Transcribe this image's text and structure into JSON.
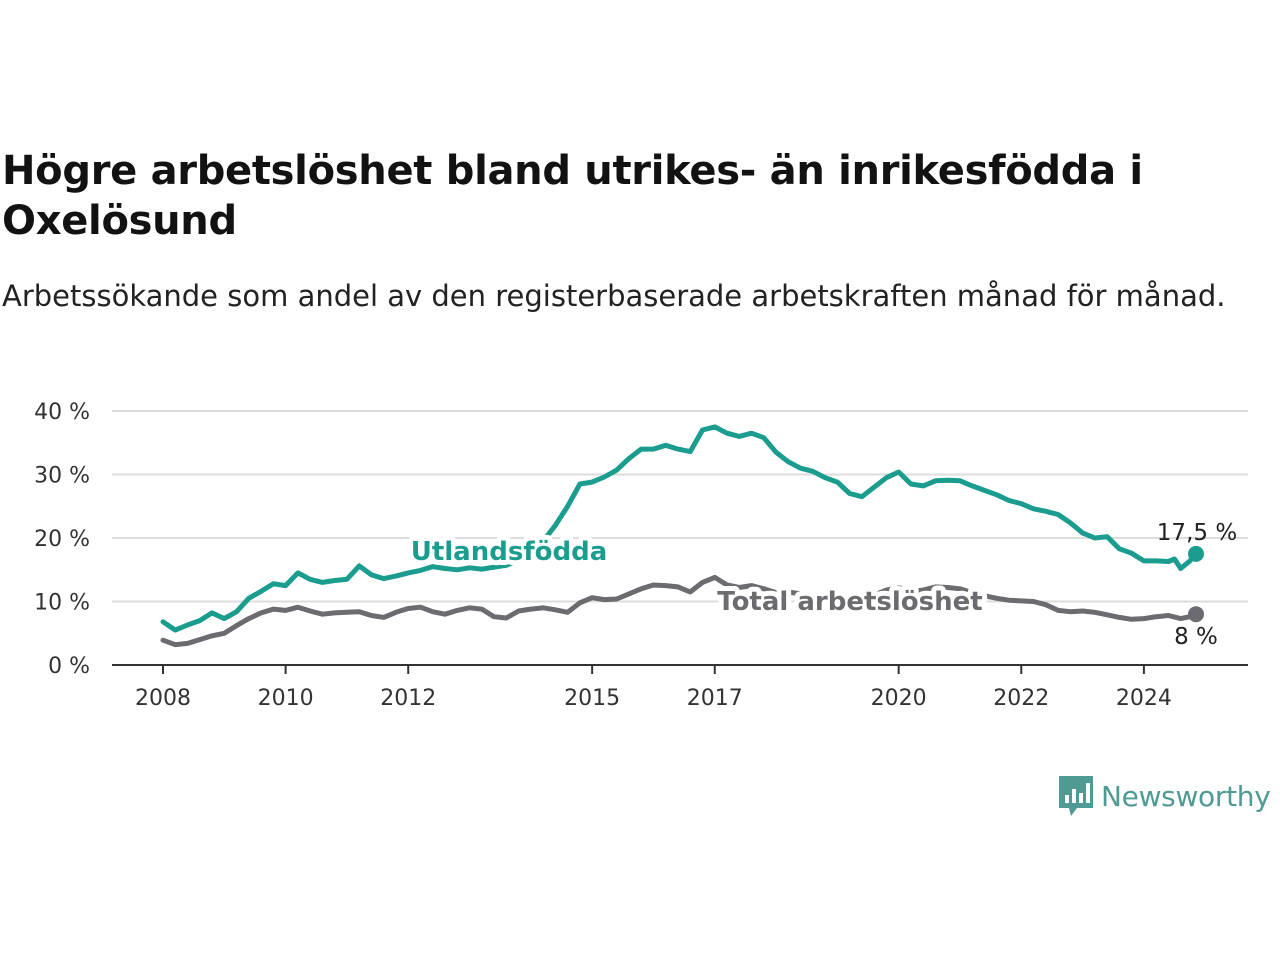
{
  "title": "Högre arbetslöshet bland utrikes- än inrikesfödda i Oxelösund",
  "subtitle": "Arbetssökande som andel av den registerbaserade arbetskraften månad för månad.",
  "brand": {
    "name": "Newsworthy",
    "icon": "newsworthy-logo-icon",
    "color": "#4f9a93"
  },
  "chart_data": {
    "type": "line",
    "title": "Högre arbetslöshet bland utrikes- än inrikesfödda i Oxelösund",
    "subtitle": "Arbetssökande som andel av den registerbaserade arbetskraften månad för månad.",
    "xlabel": "",
    "ylabel": "",
    "x_range": [
      2008.0,
      2024.85
    ],
    "ylim": [
      0,
      40
    ],
    "y_ticks": [
      0,
      10,
      20,
      30,
      40
    ],
    "y_tick_labels": [
      "0 %",
      "10 %",
      "20 %",
      "30 %",
      "40 %"
    ],
    "x_ticks": [
      2008,
      2010,
      2012,
      2015,
      2017,
      2020,
      2022,
      2024
    ],
    "x_tick_labels": [
      "2008",
      "2010",
      "2012",
      "2015",
      "2017",
      "2020",
      "2022",
      "2024"
    ],
    "grid": true,
    "legend": "direct labels",
    "series": [
      {
        "name": "Utlandsfödda",
        "color": "#1a9c8e",
        "end_label": "17,5 %",
        "points": [
          [
            2008.0,
            6.8
          ],
          [
            2008.2,
            5.5
          ],
          [
            2008.4,
            6.3
          ],
          [
            2008.6,
            7.0
          ],
          [
            2008.8,
            8.2
          ],
          [
            2009.0,
            7.3
          ],
          [
            2009.2,
            8.4
          ],
          [
            2009.4,
            10.5
          ],
          [
            2009.6,
            11.6
          ],
          [
            2009.8,
            12.8
          ],
          [
            2010.0,
            12.5
          ],
          [
            2010.2,
            14.5
          ],
          [
            2010.4,
            13.5
          ],
          [
            2010.6,
            13.0
          ],
          [
            2010.8,
            13.3
          ],
          [
            2011.0,
            13.5
          ],
          [
            2011.2,
            15.6
          ],
          [
            2011.4,
            14.2
          ],
          [
            2011.6,
            13.6
          ],
          [
            2011.8,
            14.0
          ],
          [
            2012.0,
            14.5
          ],
          [
            2012.2,
            14.9
          ],
          [
            2012.4,
            15.5
          ],
          [
            2012.6,
            15.2
          ],
          [
            2012.8,
            15.0
          ],
          [
            2013.0,
            15.3
          ],
          [
            2013.2,
            15.1
          ],
          [
            2013.4,
            15.4
          ],
          [
            2013.6,
            15.7
          ],
          [
            2013.8,
            16.5
          ],
          [
            2014.0,
            18.0
          ],
          [
            2014.2,
            19.5
          ],
          [
            2014.4,
            22.0
          ],
          [
            2014.6,
            25.0
          ],
          [
            2014.8,
            28.5
          ],
          [
            2015.0,
            28.8
          ],
          [
            2015.2,
            29.6
          ],
          [
            2015.4,
            30.7
          ],
          [
            2015.6,
            32.5
          ],
          [
            2015.8,
            34.0
          ],
          [
            2016.0,
            34.0
          ],
          [
            2016.2,
            34.6
          ],
          [
            2016.4,
            34.0
          ],
          [
            2016.6,
            33.6
          ],
          [
            2016.8,
            37.0
          ],
          [
            2017.0,
            37.5
          ],
          [
            2017.2,
            36.5
          ],
          [
            2017.4,
            36.0
          ],
          [
            2017.6,
            36.5
          ],
          [
            2017.8,
            35.8
          ],
          [
            2018.0,
            33.5
          ],
          [
            2018.2,
            32.0
          ],
          [
            2018.4,
            31.0
          ],
          [
            2018.6,
            30.5
          ],
          [
            2018.8,
            29.5
          ],
          [
            2019.0,
            28.8
          ],
          [
            2019.2,
            27.0
          ],
          [
            2019.4,
            26.5
          ],
          [
            2019.6,
            28.0
          ],
          [
            2019.8,
            29.5
          ],
          [
            2020.0,
            30.4
          ],
          [
            2020.2,
            28.5
          ],
          [
            2020.4,
            28.2
          ],
          [
            2020.6,
            29.0
          ],
          [
            2020.8,
            29.1
          ],
          [
            2021.0,
            29.0
          ],
          [
            2021.2,
            28.2
          ],
          [
            2021.4,
            27.5
          ],
          [
            2021.6,
            26.8
          ],
          [
            2021.8,
            25.9
          ],
          [
            2022.0,
            25.4
          ],
          [
            2022.2,
            24.6
          ],
          [
            2022.4,
            24.2
          ],
          [
            2022.6,
            23.7
          ],
          [
            2022.8,
            22.4
          ],
          [
            2023.0,
            20.8
          ],
          [
            2023.2,
            20.0
          ],
          [
            2023.4,
            20.2
          ],
          [
            2023.6,
            18.3
          ],
          [
            2023.8,
            17.6
          ],
          [
            2024.0,
            16.4
          ],
          [
            2024.2,
            16.4
          ],
          [
            2024.4,
            16.3
          ],
          [
            2024.5,
            16.7
          ],
          [
            2024.6,
            15.2
          ],
          [
            2024.75,
            16.4
          ],
          [
            2024.85,
            17.5
          ]
        ]
      },
      {
        "name": "Total arbetslöshet",
        "color": "#6b6b70",
        "end_label": "8 %",
        "points": [
          [
            2008.0,
            3.9
          ],
          [
            2008.2,
            3.2
          ],
          [
            2008.4,
            3.4
          ],
          [
            2008.6,
            4.0
          ],
          [
            2008.8,
            4.6
          ],
          [
            2009.0,
            5.0
          ],
          [
            2009.2,
            6.2
          ],
          [
            2009.4,
            7.3
          ],
          [
            2009.6,
            8.2
          ],
          [
            2009.8,
            8.8
          ],
          [
            2010.0,
            8.6
          ],
          [
            2010.2,
            9.1
          ],
          [
            2010.4,
            8.5
          ],
          [
            2010.6,
            8.0
          ],
          [
            2010.8,
            8.2
          ],
          [
            2011.0,
            8.3
          ],
          [
            2011.2,
            8.4
          ],
          [
            2011.4,
            7.8
          ],
          [
            2011.6,
            7.5
          ],
          [
            2011.8,
            8.3
          ],
          [
            2012.0,
            8.9
          ],
          [
            2012.2,
            9.1
          ],
          [
            2012.4,
            8.4
          ],
          [
            2012.6,
            8.0
          ],
          [
            2012.8,
            8.6
          ],
          [
            2013.0,
            9.0
          ],
          [
            2013.2,
            8.8
          ],
          [
            2013.4,
            7.6
          ],
          [
            2013.6,
            7.4
          ],
          [
            2013.8,
            8.5
          ],
          [
            2014.0,
            8.8
          ],
          [
            2014.2,
            9.0
          ],
          [
            2014.4,
            8.7
          ],
          [
            2014.6,
            8.3
          ],
          [
            2014.8,
            9.8
          ],
          [
            2015.0,
            10.6
          ],
          [
            2015.2,
            10.3
          ],
          [
            2015.4,
            10.4
          ],
          [
            2015.6,
            11.2
          ],
          [
            2015.8,
            12.0
          ],
          [
            2016.0,
            12.6
          ],
          [
            2016.2,
            12.5
          ],
          [
            2016.4,
            12.3
          ],
          [
            2016.6,
            11.5
          ],
          [
            2016.8,
            13.0
          ],
          [
            2017.0,
            13.8
          ],
          [
            2017.2,
            12.6
          ],
          [
            2017.4,
            12.2
          ],
          [
            2017.6,
            12.5
          ],
          [
            2017.8,
            12.0
          ],
          [
            2018.0,
            11.4
          ],
          [
            2018.2,
            11.5
          ],
          [
            2018.4,
            11.2
          ],
          [
            2018.6,
            11.0
          ],
          [
            2018.8,
            10.9
          ],
          [
            2019.0,
            10.8
          ],
          [
            2019.2,
            10.4
          ],
          [
            2019.4,
            10.5
          ],
          [
            2019.6,
            11.0
          ],
          [
            2019.8,
            11.8
          ],
          [
            2020.0,
            12.2
          ],
          [
            2020.2,
            11.6
          ],
          [
            2020.4,
            11.8
          ],
          [
            2020.6,
            12.3
          ],
          [
            2020.8,
            12.2
          ],
          [
            2021.0,
            12.0
          ],
          [
            2021.2,
            11.4
          ],
          [
            2021.4,
            10.9
          ],
          [
            2021.6,
            10.5
          ],
          [
            2021.8,
            10.2
          ],
          [
            2022.0,
            10.1
          ],
          [
            2022.2,
            10.0
          ],
          [
            2022.4,
            9.5
          ],
          [
            2022.6,
            8.6
          ],
          [
            2022.8,
            8.4
          ],
          [
            2023.0,
            8.5
          ],
          [
            2023.2,
            8.3
          ],
          [
            2023.4,
            7.9
          ],
          [
            2023.6,
            7.5
          ],
          [
            2023.8,
            7.2
          ],
          [
            2024.0,
            7.3
          ],
          [
            2024.2,
            7.6
          ],
          [
            2024.4,
            7.8
          ],
          [
            2024.6,
            7.3
          ],
          [
            2024.75,
            7.6
          ],
          [
            2024.85,
            8.0
          ]
        ]
      }
    ]
  }
}
